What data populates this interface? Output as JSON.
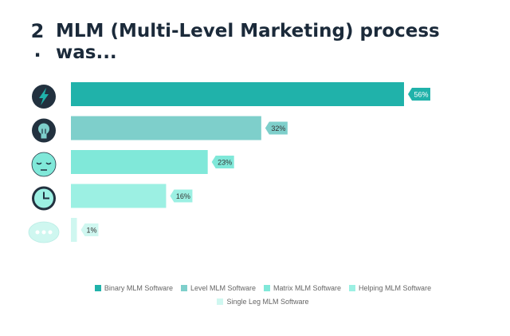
{
  "question": {
    "number": "2",
    "dot": ".",
    "title": "MLM (Multi-Level Marketing) process was..."
  },
  "chart_data": {
    "type": "bar",
    "orientation": "horizontal",
    "categories": [
      "Binary MLM Software",
      "Level MLM Software",
      "Matrix MLM Software",
      "Helping MLM Software",
      "Single Leg MLM Software"
    ],
    "values": [
      56,
      32,
      23,
      16,
      1
    ],
    "value_labels": [
      "56%",
      "32%",
      "23%",
      "16%",
      "1%"
    ],
    "unit": "%",
    "xlim": [
      0,
      56
    ],
    "colors": [
      "#20b2aa",
      "#7ecfcb",
      "#80e8d9",
      "#9cf0e3",
      "#cff7f0"
    ],
    "icons": [
      "lightning-icon",
      "lightbulb-icon",
      "sleepy-face-icon",
      "clock-icon",
      "speech-bubble-icon"
    ],
    "grid": false,
    "legend": "bottom"
  }
}
